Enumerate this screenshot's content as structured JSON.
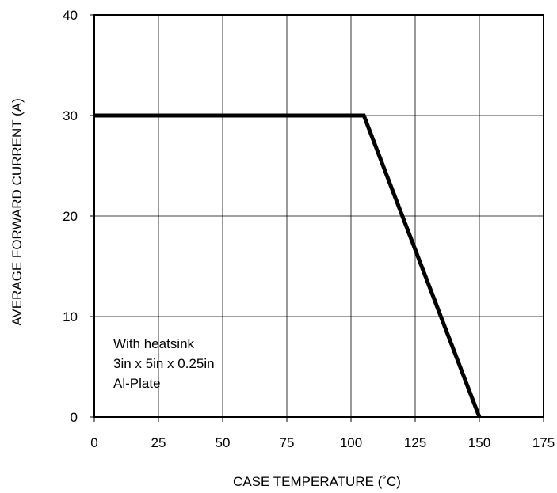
{
  "chart_data": {
    "type": "line",
    "title": "",
    "xlabel": "CASE TEMPERATURE (˚C)",
    "ylabel": "AVERAGE FORWARD CURRENT (A)",
    "xlim": [
      0,
      175
    ],
    "ylim": [
      0,
      40
    ],
    "xticks": [
      0,
      25,
      50,
      75,
      100,
      125,
      150,
      175
    ],
    "yticks": [
      0,
      10,
      20,
      30,
      40
    ],
    "grid": true,
    "series": [
      {
        "x": [
          0,
          105,
          150
        ],
        "y": [
          30,
          30,
          0
        ]
      }
    ],
    "annotation": {
      "lines": [
        "With heatsink",
        "3in x 5in x 0.25in",
        "Al-Plate"
      ]
    }
  }
}
